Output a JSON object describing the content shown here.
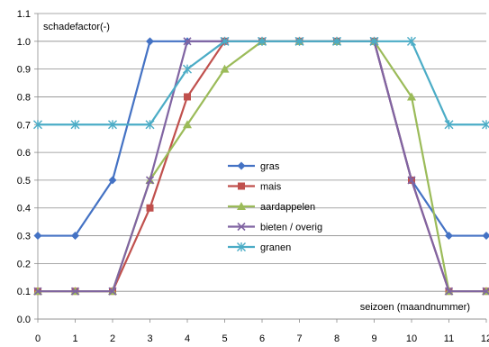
{
  "chart_data": {
    "type": "line",
    "x": [
      0,
      1,
      2,
      3,
      4,
      5,
      6,
      7,
      8,
      9,
      10,
      11,
      12
    ],
    "xlim": [
      0,
      12
    ],
    "ylim": [
      0.0,
      1.1
    ],
    "x_ticks": [
      "0",
      "1",
      "2",
      "3",
      "4",
      "5",
      "6",
      "7",
      "8",
      "9",
      "10",
      "11",
      "12"
    ],
    "y_ticks": [
      "0.0",
      "0.1",
      "0.2",
      "0.3",
      "0.4",
      "0.5",
      "0.6",
      "0.7",
      "0.8",
      "0.9",
      "1.0",
      "1.1"
    ],
    "ylabel": "schadefactor(-)",
    "xlabel": "seizoen (maandnummer)",
    "grid": "horizontal",
    "legend_position": "center",
    "series": [
      {
        "name": "gras",
        "color": "#4472C4",
        "marker": "diamond",
        "values": [
          0.3,
          0.3,
          0.5,
          1.0,
          1.0,
          1.0,
          1.0,
          1.0,
          1.0,
          1.0,
          0.5,
          0.3,
          0.3
        ]
      },
      {
        "name": "mais",
        "color": "#C0504D",
        "marker": "square",
        "values": [
          0.1,
          0.1,
          0.1,
          0.4,
          0.8,
          1.0,
          1.0,
          1.0,
          1.0,
          1.0,
          0.5,
          0.1,
          0.1
        ]
      },
      {
        "name": "aardappelen",
        "color": "#9BBB59",
        "marker": "triangle",
        "values": [
          0.1,
          0.1,
          0.1,
          0.5,
          0.7,
          0.9,
          1.0,
          1.0,
          1.0,
          1.0,
          0.8,
          0.1,
          0.1
        ]
      },
      {
        "name": "bieten / overig",
        "color": "#8064A2",
        "marker": "x",
        "values": [
          0.1,
          0.1,
          0.1,
          0.5,
          1.0,
          1.0,
          1.0,
          1.0,
          1.0,
          1.0,
          0.5,
          0.1,
          0.1
        ]
      },
      {
        "name": "granen",
        "color": "#4BACC6",
        "marker": "star",
        "values": [
          0.7,
          0.7,
          0.7,
          0.7,
          0.9,
          1.0,
          1.0,
          1.0,
          1.0,
          1.0,
          1.0,
          0.7,
          0.7
        ]
      }
    ]
  }
}
